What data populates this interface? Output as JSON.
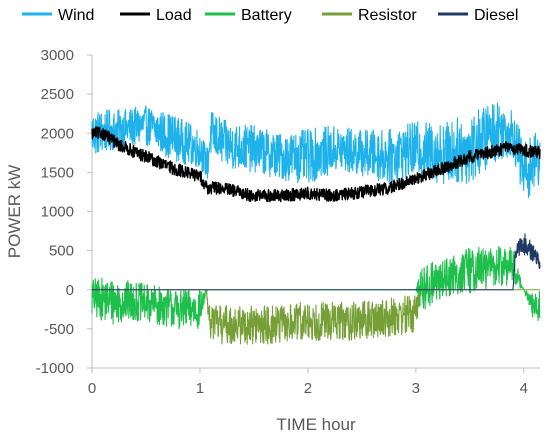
{
  "chart_data": {
    "type": "line",
    "xlabel": "TIME hour",
    "ylabel": "POWER kW",
    "xlim": [
      0,
      4.15
    ],
    "ylim": [
      -1000,
      3000
    ],
    "x_ticks": [
      0,
      1,
      2,
      3,
      4
    ],
    "y_ticks": [
      -1000,
      -500,
      0,
      500,
      1000,
      1500,
      2000,
      2500,
      3000
    ],
    "x_tick_labels": [
      "0",
      "1",
      "2",
      "3",
      "4"
    ],
    "y_tick_labels": [
      "-1000",
      "-500",
      "0",
      "500",
      "1000",
      "1500",
      "2000",
      "2500",
      "3000"
    ],
    "grid": false,
    "legend_position": "top",
    "draw_order": [
      "Wind",
      "Battery",
      "Resistor",
      "Load",
      "Diesel"
    ],
    "series": [
      {
        "name": "Wind",
        "color": "#1fb2ea",
        "x": [
          0,
          0.25,
          0.5,
          0.75,
          1.0,
          1.07,
          1.1,
          1.25,
          1.5,
          1.75,
          2.0,
          2.25,
          2.5,
          2.75,
          3.0,
          3.25,
          3.5,
          3.75,
          3.9,
          4.0,
          4.15
        ],
        "values": [
          2000,
          2050,
          2100,
          1950,
          1800,
          1600,
          2000,
          1850,
          1800,
          1700,
          1700,
          1800,
          1750,
          1700,
          1800,
          1750,
          1800,
          2050,
          2000,
          1500,
          1700
        ],
        "noise_amplitude": [
          300,
          250,
          250,
          300,
          250,
          200,
          300,
          300,
          300,
          300,
          350,
          300,
          300,
          350,
          350,
          400,
          450,
          400,
          300,
          400,
          350
        ]
      },
      {
        "name": "Load",
        "color": "#000000",
        "x": [
          0,
          0.1,
          0.25,
          0.5,
          0.75,
          1.0,
          1.07,
          1.2,
          1.5,
          1.75,
          2.0,
          2.25,
          2.5,
          2.75,
          3.0,
          3.25,
          3.5,
          3.75,
          3.85,
          4.0,
          4.15
        ],
        "values": [
          2000,
          2000,
          1850,
          1700,
          1550,
          1450,
          1300,
          1300,
          1200,
          1200,
          1230,
          1200,
          1250,
          1300,
          1420,
          1550,
          1700,
          1780,
          1820,
          1780,
          1750
        ],
        "noise_amplitude": [
          80,
          80,
          80,
          80,
          80,
          80,
          80,
          80,
          80,
          80,
          80,
          80,
          80,
          80,
          80,
          80,
          80,
          80,
          80,
          80,
          80
        ]
      },
      {
        "name": "Battery",
        "color": "#1fbf4c",
        "x": [
          0,
          0.2,
          0.4,
          0.6,
          0.8,
          1.0,
          1.07,
          1.5,
          2.0,
          2.5,
          2.9,
          3.0,
          3.05,
          3.25,
          3.5,
          3.75,
          3.9,
          4.0,
          4.1,
          4.15
        ],
        "values": [
          -100,
          -150,
          -150,
          -200,
          -250,
          -250,
          0,
          0,
          0,
          0,
          0,
          0,
          0,
          150,
          250,
          300,
          300,
          0,
          -250,
          -200
        ],
        "noise_amplitude": [
          250,
          300,
          250,
          250,
          250,
          250,
          0,
          0,
          0,
          0,
          0,
          0,
          300,
          250,
          300,
          250,
          250,
          0,
          200,
          200
        ]
      },
      {
        "name": "Resistor",
        "color": "#76a037",
        "x": [
          0,
          1.06,
          1.08,
          1.2,
          1.5,
          1.75,
          2.0,
          2.25,
          2.5,
          2.75,
          3.0,
          3.05,
          4.15
        ],
        "values": [
          0,
          0,
          -400,
          -450,
          -450,
          -450,
          -400,
          -400,
          -400,
          -350,
          -300,
          0,
          0
        ],
        "noise_amplitude": [
          0,
          0,
          200,
          250,
          250,
          250,
          250,
          250,
          250,
          250,
          250,
          0,
          0
        ]
      },
      {
        "name": "Diesel",
        "color": "#1f3864",
        "x": [
          0,
          3.9,
          3.92,
          4.0,
          4.15
        ],
        "values": [
          0,
          0,
          450,
          600,
          350
        ],
        "noise_amplitude": [
          0,
          0,
          100,
          150,
          100
        ]
      }
    ]
  }
}
